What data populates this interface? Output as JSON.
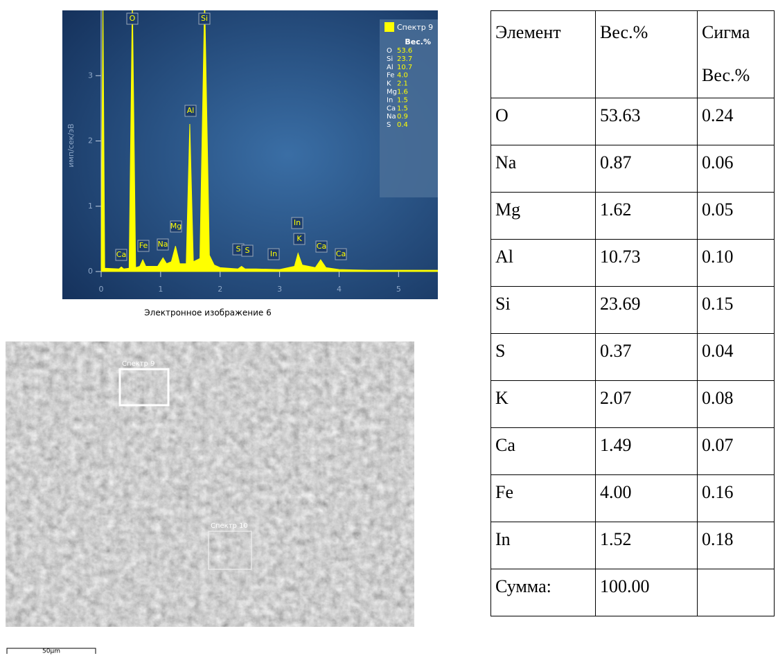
{
  "chart_data": {
    "type": "area",
    "y_label": "имп/сек/эВ",
    "color": "#ffff00",
    "x": [
      0.0,
      0.03,
      0.06,
      0.3,
      0.34,
      0.38,
      0.47,
      0.525,
      0.58,
      0.65,
      0.7,
      0.75,
      0.95,
      1.04,
      1.1,
      1.18,
      1.25,
      1.32,
      1.43,
      1.49,
      1.55,
      1.66,
      1.74,
      1.82,
      1.9,
      2.0,
      2.3,
      2.36,
      2.42,
      2.6,
      3.0,
      3.25,
      3.31,
      3.38,
      3.6,
      3.69,
      3.78,
      4.0,
      4.5,
      5.0,
      5.66
    ],
    "values": [
      0.0,
      4.2,
      0.05,
      0.04,
      0.07,
      0.04,
      0.05,
      4.2,
      0.06,
      0.08,
      0.18,
      0.08,
      0.08,
      0.21,
      0.12,
      0.15,
      0.39,
      0.12,
      0.12,
      2.26,
      0.15,
      0.2,
      4.2,
      0.25,
      0.1,
      0.06,
      0.04,
      0.08,
      0.04,
      0.04,
      0.03,
      0.08,
      0.28,
      0.1,
      0.06,
      0.18,
      0.06,
      0.03,
      0.02,
      0.02,
      0.02
    ],
    "xlim": [
      0,
      5.66
    ],
    "ylim": [
      0,
      4
    ],
    "xticks": [
      0,
      1,
      2,
      3,
      4,
      5
    ],
    "yticks": [
      0,
      1,
      2,
      3
    ],
    "annotations": [
      "Ca",
      "Fe",
      "Na",
      "Mg",
      "Al",
      "O",
      "Si",
      "S",
      "S",
      "In",
      "In",
      "K",
      "Ca",
      "Ca"
    ],
    "legend": {
      "title": "Спектр 9",
      "header": "Вес.%",
      "rows": [
        [
          "O",
          "53.6"
        ],
        [
          "Si",
          "23.7"
        ],
        [
          "Al",
          "10.7"
        ],
        [
          "Fe",
          "4.0"
        ],
        [
          "K",
          "2.1"
        ],
        [
          "Mg",
          "1.6"
        ],
        [
          "In",
          "1.5"
        ],
        [
          "Ca",
          "1.5"
        ],
        [
          "Na",
          "0.9"
        ],
        [
          "S",
          "0.4"
        ]
      ]
    }
  },
  "caption": "Электронное изображение 6",
  "image": {
    "regions": [
      "Спектр 9",
      "Спектр 10"
    ],
    "scale_bar": "50µm"
  },
  "table": {
    "header": [
      "Элемент",
      "Вес.%",
      "Сигма Вес.%"
    ],
    "rows": [
      [
        "O",
        "53.63",
        "0.24"
      ],
      [
        "Na",
        "0.87",
        "0.06"
      ],
      [
        "Mg",
        "1.62",
        "0.05"
      ],
      [
        "Al",
        "10.73",
        "0.10"
      ],
      [
        "Si",
        "23.69",
        "0.15"
      ],
      [
        "S",
        "0.37",
        "0.04"
      ],
      [
        "K",
        "2.07",
        "0.08"
      ],
      [
        "Ca",
        "1.49",
        "0.07"
      ],
      [
        "Fe",
        "4.00",
        "0.16"
      ],
      [
        "In",
        "1.52",
        "0.18"
      ],
      [
        "Сумма:",
        "100.00",
        ""
      ]
    ]
  }
}
